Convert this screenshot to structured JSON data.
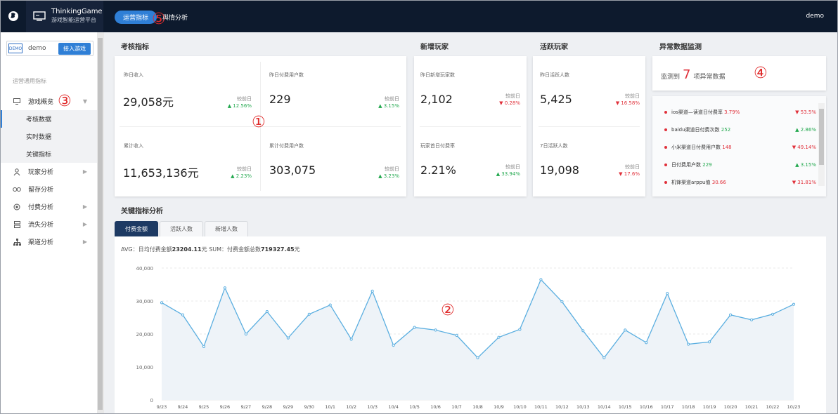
{
  "app": {
    "brand_line1": "ThinkingGame",
    "brand_line2": "游戏智能运营平台",
    "logo_icon": "game-logo-icon",
    "nav": [
      {
        "label": "运营指标",
        "active": true
      },
      {
        "label": "舆情分析",
        "active": false
      }
    ],
    "user": "demo"
  },
  "sidebar": {
    "game_badge": "DEMO",
    "game_name": "demo",
    "join_button": "接入游戏",
    "section_title": "运营通用指标",
    "items": [
      {
        "label": "游戏概览",
        "icon": "monitor-icon",
        "expanded": true
      },
      {
        "label": "考核数据",
        "sub": true,
        "active": true
      },
      {
        "label": "实时数据",
        "sub": true
      },
      {
        "label": "关键指标",
        "sub": true
      },
      {
        "label": "玩家分析",
        "icon": "user-icon"
      },
      {
        "label": "留存分析",
        "icon": "loop-icon"
      },
      {
        "label": "付费分析",
        "icon": "coin-icon"
      },
      {
        "label": "流失分析",
        "icon": "funnel-icon"
      },
      {
        "label": "渠道分析",
        "icon": "hierarchy-icon"
      }
    ]
  },
  "annotations": [
    "①",
    "②",
    "③",
    "④",
    "⑤"
  ],
  "sections": {
    "assessment": "考核指标",
    "new_players": "新增玩家",
    "active_players": "活跃玩家",
    "anomaly": "异常数据监测",
    "key_metrics": "关键指标分析"
  },
  "compare_label": "较前日",
  "assessment_metrics": [
    {
      "label": "昨日收入",
      "value": "29,058元",
      "change": "▲ 12.56%",
      "dir": "up"
    },
    {
      "label": "昨日付费用户数",
      "value": "229",
      "change": "▲ 3.15%",
      "dir": "up"
    },
    {
      "label": "累计收入",
      "value": "11,653,136元",
      "change": "▲ 2.23%",
      "dir": "up"
    },
    {
      "label": "累计付费用户数",
      "value": "303,075",
      "change": "▲ 3.23%",
      "dir": "up"
    }
  ],
  "new_player_metrics": [
    {
      "label": "昨日新增玩家数",
      "value": "2,102",
      "change": "▼ 0.28%",
      "dir": "down"
    },
    {
      "label": "玩家首日付费率",
      "value": "2.21%",
      "change": "▲ 33.94%",
      "dir": "up"
    }
  ],
  "active_player_metrics": [
    {
      "label": "昨日活跃人数",
      "value": "5,425",
      "change": "▼ 16.58%",
      "dir": "down"
    },
    {
      "label": "7日活跃人数",
      "value": "19,098",
      "change": "▼ 17.6%",
      "dir": "down"
    }
  ],
  "anomaly": {
    "prefix": "监测到",
    "count": "7",
    "suffix": "项异常数据",
    "items": [
      {
        "text": "ios渠道—读道日付费率",
        "value": "3.79%",
        "change": "▼ 53.5%",
        "dir": "down"
      },
      {
        "text": "baidu渠道日付费次数",
        "value": "252",
        "change": "▲ 2.86%",
        "dir": "up"
      },
      {
        "text": "小米渠道日付费用户数",
        "value": "148",
        "change": "▼ 49.14%",
        "dir": "down"
      },
      {
        "text": "日付费用户数",
        "value": "229",
        "change": "▲ 3.15%",
        "dir": "up"
      },
      {
        "text": "机锋渠道arppu值",
        "value": "30.66",
        "change": "▼ 31.81%",
        "dir": "down"
      }
    ]
  },
  "tabs": [
    {
      "label": "付费金额",
      "active": true
    },
    {
      "label": "活跃人数",
      "active": false
    },
    {
      "label": "新增人数",
      "active": false
    }
  ],
  "summary": {
    "avg_prefix": "AVG：日均付费金额",
    "avg_value": "23204.11",
    "sum_prefix": "元 SUM：付费金额总数",
    "sum_value": "719327.45",
    "sum_suffix": "元"
  },
  "chart_data": {
    "type": "area",
    "title": "",
    "xlabel": "",
    "ylabel": "",
    "ylim": [
      0,
      40000
    ],
    "yticks": [
      "0",
      "10,000",
      "20,000",
      "30,000",
      "40,000"
    ],
    "x": [
      "9/23",
      "9/24",
      "9/25",
      "9/26",
      "9/27",
      "9/28",
      "9/29",
      "9/30",
      "10/1",
      "10/2",
      "10/3",
      "10/4",
      "10/5",
      "10/6",
      "10/7",
      "10/8",
      "10/9",
      "10/10",
      "10/11",
      "10/12",
      "10/13",
      "10/14",
      "10/15",
      "10/16",
      "10/17",
      "10/18",
      "10/19",
      "10/20",
      "10/21",
      "10/22",
      "10/23"
    ],
    "series": [
      {
        "values": [
          29500,
          25800,
          16200,
          34000,
          20000,
          26800,
          18800,
          26000,
          28800,
          18400,
          33000,
          16600,
          22000,
          21200,
          19600,
          12800,
          19000,
          21400,
          36500,
          29800,
          21000,
          12800,
          21200,
          17400,
          32300,
          16900,
          17600,
          25800,
          24300,
          26000,
          29000
        ],
        "color": "#5aaee0"
      }
    ],
    "grid": true,
    "fill_color": "#eef3f8"
  }
}
